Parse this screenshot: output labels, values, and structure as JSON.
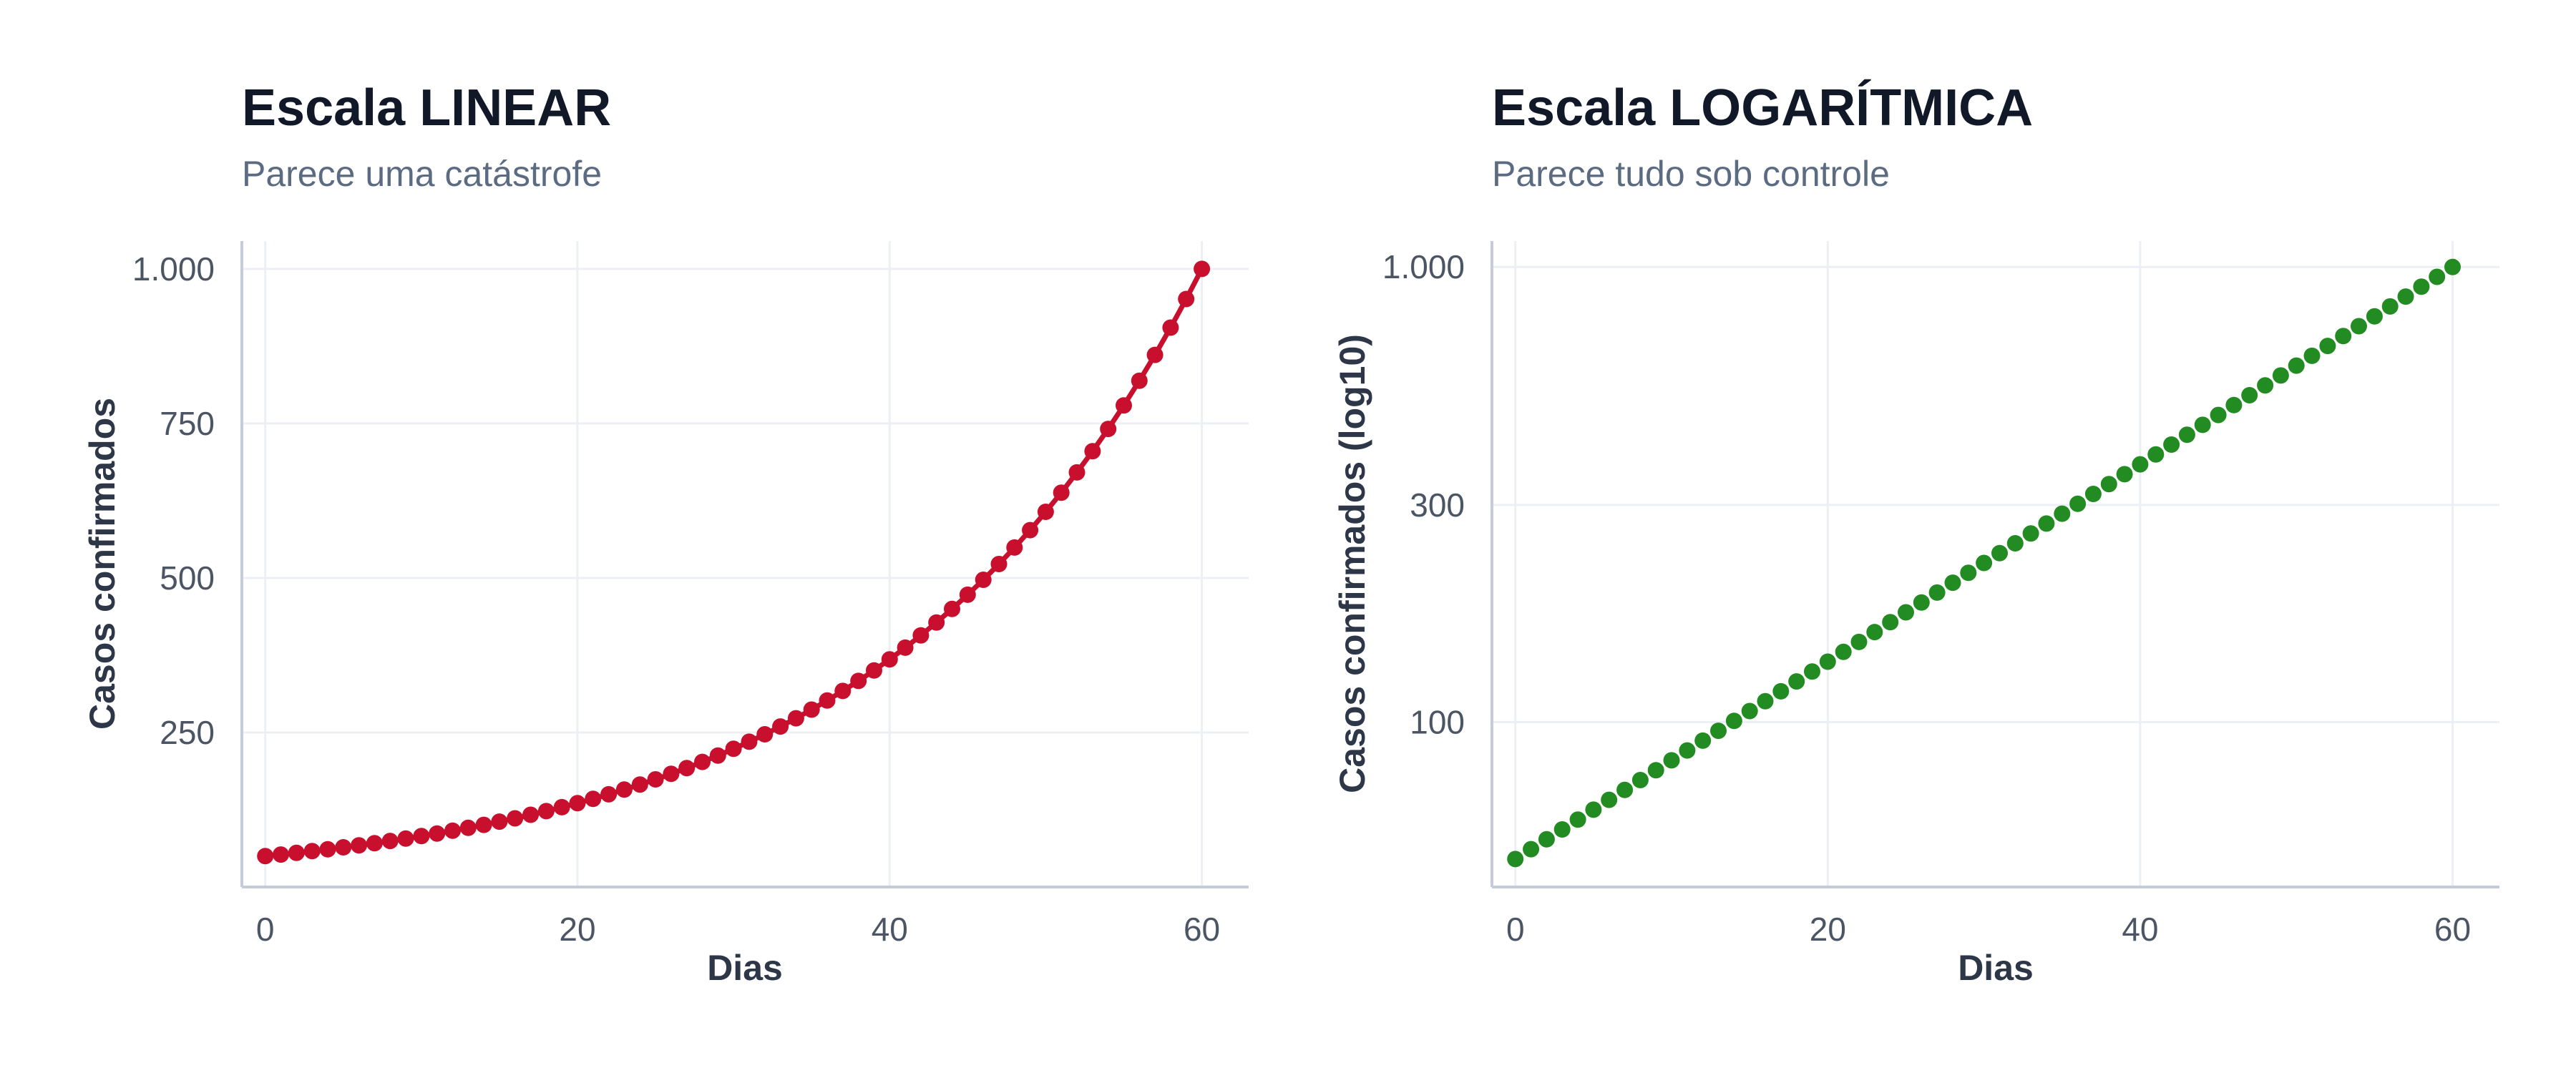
{
  "chart_data": [
    {
      "type": "line",
      "title": "Escala LINEAR",
      "subtitle": "Parece uma catástrofe",
      "xlabel": "Dias",
      "ylabel": "Casos confirmados",
      "y_scale": "linear",
      "xlim": [
        -1.5,
        63
      ],
      "ylim": [
        0,
        1045
      ],
      "x_ticks": [
        0,
        20,
        40,
        60
      ],
      "x_tick_labels": [
        "0",
        "20",
        "40",
        "60"
      ],
      "y_ticks": [
        250,
        500,
        750,
        1000
      ],
      "y_tick_labels": [
        "250",
        "500",
        "750",
        "1.000"
      ],
      "grid": true,
      "color": "#c8102e",
      "markers": true,
      "connected": true,
      "growth": {
        "start_value": 50,
        "end_value": 1000,
        "first_day": 0,
        "last_day": 60,
        "step": 1
      }
    },
    {
      "type": "scatter",
      "title": "Escala LOGARÍTMICA",
      "subtitle": "Parece tudo sob controle",
      "xlabel": "Dias",
      "ylabel": "Casos confirmados (log10)",
      "y_scale": "log10",
      "xlim": [
        -1.5,
        63
      ],
      "ylim": [
        43.4,
        1140
      ],
      "x_ticks": [
        0,
        20,
        40,
        60
      ],
      "x_tick_labels": [
        "0",
        "20",
        "40",
        "60"
      ],
      "y_ticks": [
        100,
        300,
        1000
      ],
      "y_tick_labels": [
        "100",
        "300",
        "1.000"
      ],
      "grid": true,
      "color": "#228b22",
      "markers": true,
      "connected": false,
      "growth": {
        "start_value": 50,
        "end_value": 1000,
        "first_day": 0,
        "last_day": 60,
        "step": 1
      }
    }
  ]
}
